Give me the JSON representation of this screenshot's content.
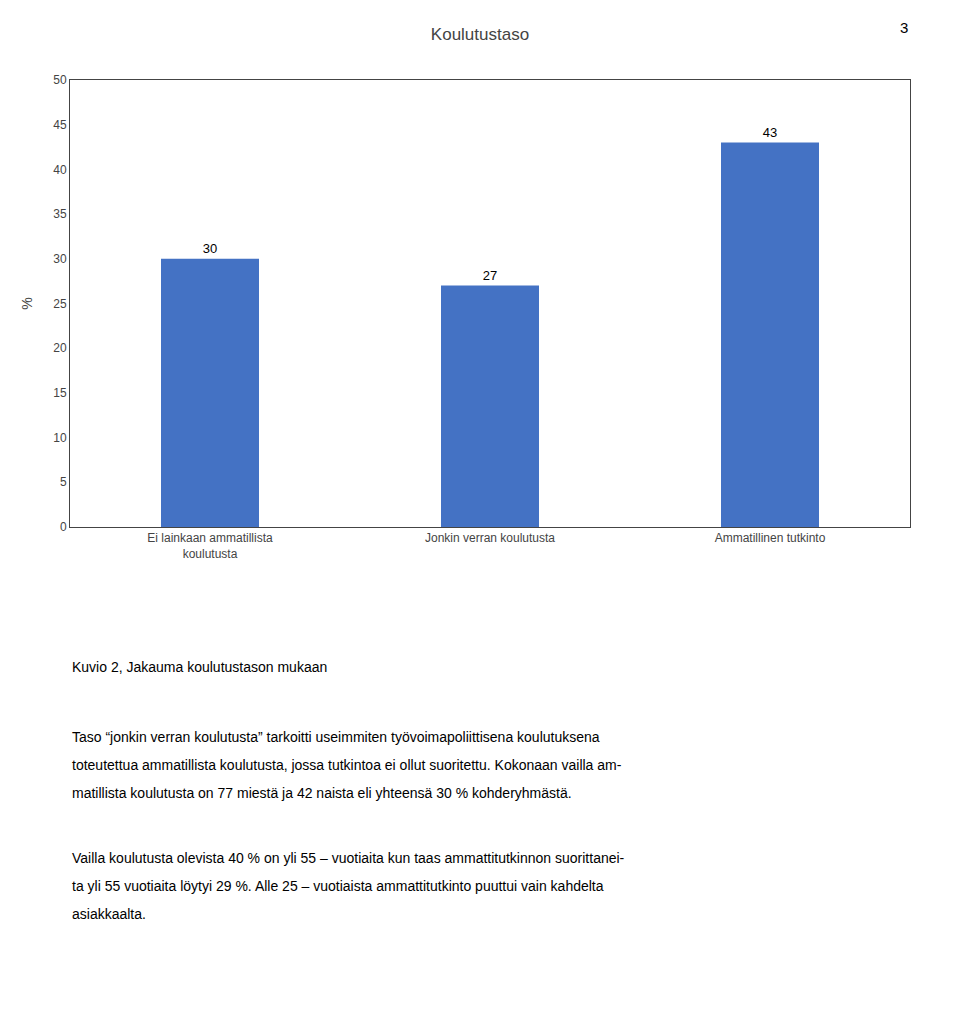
{
  "chart_data": {
    "type": "bar",
    "title": "Koulutustaso",
    "categories": [
      "Ei lainkaan ammatillista\nkoulutusta",
      "Jonkin verran koulutusta",
      "Ammatillinen tutkinto"
    ],
    "values": [
      30,
      27,
      43
    ],
    "color": "#4472C4",
    "ylabel": "%",
    "ylim": [
      0,
      50
    ],
    "yticks": [
      0,
      5,
      10,
      15,
      20,
      25,
      30,
      35,
      40,
      45,
      50
    ],
    "grid": false,
    "data_labels": true,
    "annotations": [
      "3",
      "Kuvio 2, Jakauma koulutustason mukaan",
      "Taso “jonkin verran koulutusta” tarkoitti useimmiten työvoimapoliittisena koulutuksena\ntoteutettua ammatillista koulutusta, jossa tutkintoa ei ollut suoritettu. Kokonaan vailla am-\nmatillista koulutusta on 77 miestä ja 42 naista eli yhteensä 30 % kohderyhmästä.",
      "Vailla koulutusta olevista 40 % on yli 55 – vuotiaita kun taas ammattitutkinnon suorittanei-\nta yli 55 vuotiaita löytyi 29 %. Alle 25 – vuotiaista ammattitutkinto puuttui vain kahdelta\nasiakkaalta."
    ]
  }
}
